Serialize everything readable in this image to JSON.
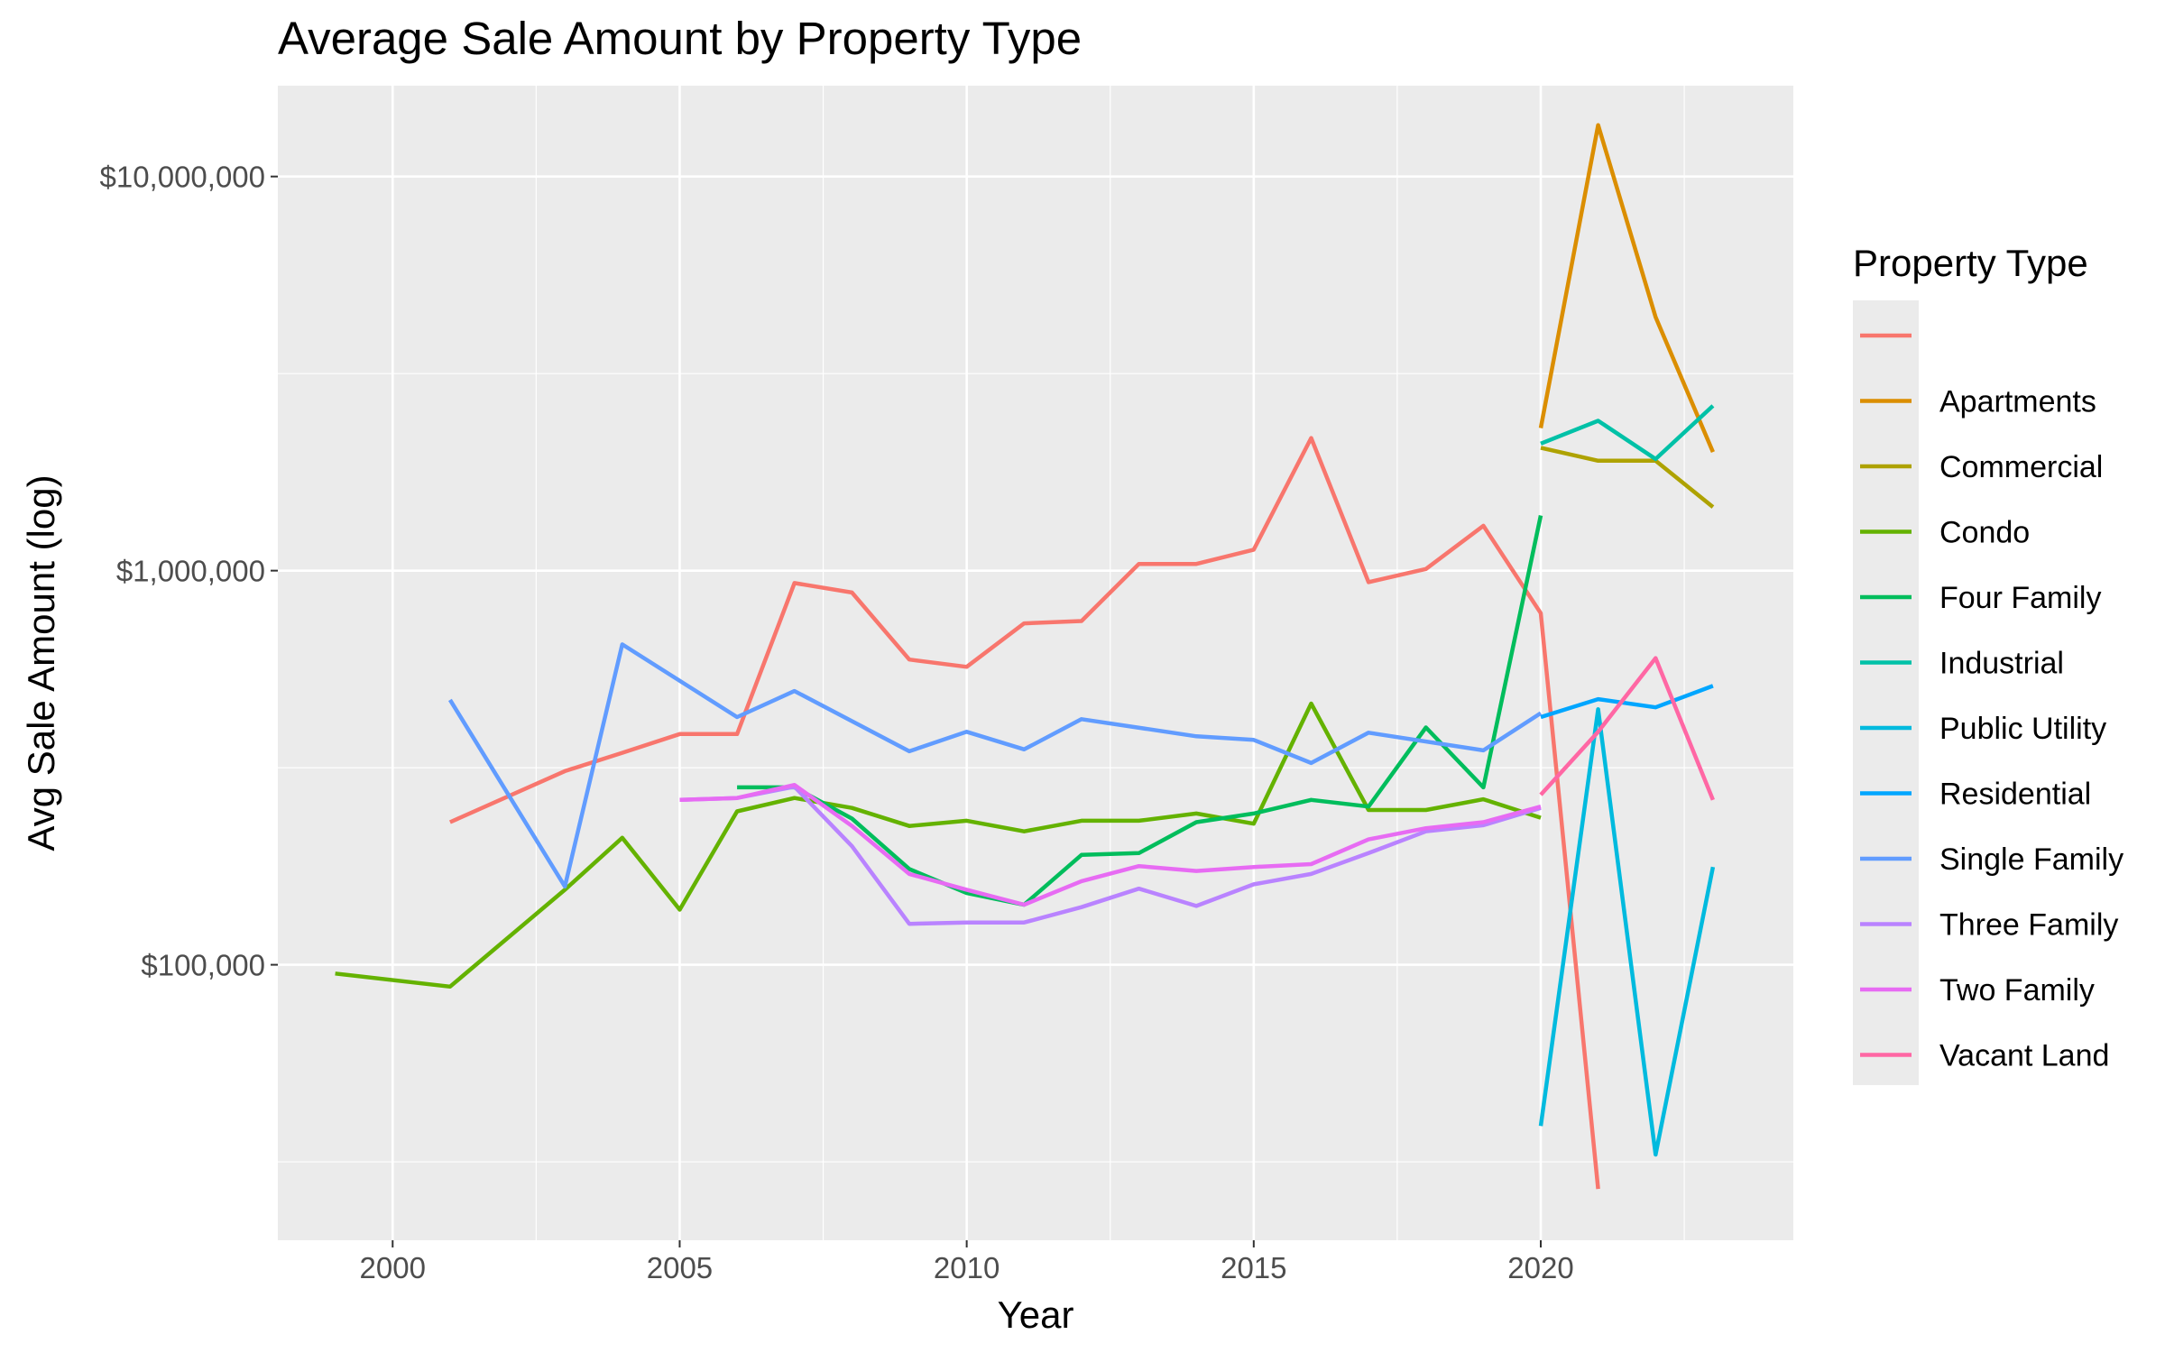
{
  "chart_data": {
    "type": "line",
    "title": "Average Sale Amount by Property Type",
    "xlabel": "Year",
    "ylabel": "Avg Sale Amount (log)",
    "y_scale": "log",
    "xlim": [
      1998,
      2024.4
    ],
    "ylim": [
      20000,
      17000000
    ],
    "x_ticks": [
      2000,
      2005,
      2010,
      2015,
      2020
    ],
    "x_tick_labels": [
      "2000",
      "2005",
      "2010",
      "2015",
      "2020"
    ],
    "y_ticks": [
      100000,
      1000000,
      10000000
    ],
    "y_tick_labels": [
      "$100,000",
      "$1,000,000",
      "$10,000,000"
    ],
    "grid": true,
    "legend_title": "Property Type",
    "legend_position": "right",
    "series": [
      {
        "name": "",
        "color": "#F8766D",
        "x": [
          2001,
          2003,
          2004,
          2005,
          2006,
          2007,
          2008,
          2009,
          2010,
          2011,
          2012,
          2013,
          2014,
          2015,
          2016,
          2017,
          2018,
          2019,
          2020,
          2021
        ],
        "y": [
          230000,
          310000,
          345000,
          385000,
          385000,
          930000,
          880000,
          595000,
          570000,
          735000,
          745000,
          1040000,
          1040000,
          1130000,
          2170000,
          935000,
          1010000,
          1300000,
          780000,
          27000
        ]
      },
      {
        "name": "Apartments",
        "color": "#DB8E00",
        "x": [
          2020,
          2021,
          2022,
          2023
        ],
        "y": [
          2300000,
          13500000,
          4400000,
          2000000
        ]
      },
      {
        "name": "Commercial",
        "color": "#AEA200",
        "x": [
          2020,
          2021,
          2022,
          2023
        ],
        "y": [
          2050000,
          1900000,
          1900000,
          1450000
        ]
      },
      {
        "name": "Condo",
        "color": "#64B200",
        "x": [
          1999,
          2001,
          2003,
          2004,
          2005,
          2006,
          2007,
          2008,
          2009,
          2010,
          2011,
          2012,
          2013,
          2014,
          2015,
          2016,
          2017,
          2018,
          2019,
          2020
        ],
        "y": [
          95000,
          88000,
          155000,
          210000,
          138000,
          245000,
          265000,
          250000,
          225000,
          232000,
          218000,
          232000,
          232000,
          242000,
          228000,
          460000,
          247000,
          247000,
          263000,
          236000
        ]
      },
      {
        "name": "Four Family",
        "color": "#00BD5C",
        "x": [
          2006,
          2007,
          2008,
          2009,
          2010,
          2011,
          2012,
          2013,
          2014,
          2015,
          2016,
          2017,
          2018,
          2019,
          2020
        ],
        "y": [
          282000,
          282000,
          235000,
          175000,
          152000,
          142000,
          190000,
          192000,
          230000,
          242000,
          262000,
          252000,
          400000,
          282000,
          1380000
        ]
      },
      {
        "name": "Industrial",
        "color": "#00C1A7",
        "x": [
          2020,
          2021,
          2022,
          2023
        ],
        "y": [
          2100000,
          2400000,
          1920000,
          2620000
        ]
      },
      {
        "name": "Public Utility",
        "color": "#00BADE",
        "x": [
          2020,
          2021,
          2022,
          2023
        ],
        "y": [
          39000,
          445000,
          33000,
          177000
        ]
      },
      {
        "name": "Residential",
        "color": "#00A6FF",
        "x": [
          2020,
          2021,
          2022,
          2023
        ],
        "y": [
          425000,
          472000,
          450000,
          510000
        ]
      },
      {
        "name": "Single Family",
        "color": "#619CFF",
        "x": [
          2001,
          2003,
          2004,
          2006,
          2007,
          2009,
          2010,
          2011,
          2012,
          2014,
          2015,
          2016,
          2017,
          2019,
          2020
        ],
        "y": [
          470000,
          158000,
          650000,
          425000,
          495000,
          348000,
          390000,
          352000,
          420000,
          380000,
          372000,
          325000,
          388000,
          350000,
          435000
        ]
      },
      {
        "name": "Three Family",
        "color": "#B983FF",
        "x": [
          2005,
          2006,
          2007,
          2008,
          2009,
          2010,
          2011,
          2012,
          2013,
          2014,
          2015,
          2016,
          2017,
          2018,
          2019,
          2020
        ],
        "y": [
          262000,
          265000,
          283000,
          200000,
          127000,
          128000,
          128000,
          140000,
          156000,
          141000,
          160000,
          170000,
          192000,
          218000,
          226000,
          250000
        ]
      },
      {
        "name": "Two Family",
        "color": "#E76BF3",
        "x": [
          2005,
          2006,
          2007,
          2008,
          2009,
          2010,
          2011,
          2012,
          2013,
          2014,
          2015,
          2016,
          2017,
          2018,
          2019,
          2020
        ],
        "y": [
          262000,
          265000,
          286000,
          225000,
          170000,
          155000,
          142000,
          163000,
          178000,
          173000,
          177000,
          180000,
          208000,
          222000,
          230000,
          252000
        ]
      },
      {
        "name": "Vacant Land",
        "color": "#FF67A4",
        "x": [
          2020,
          2021,
          2022,
          2023
        ],
        "y": [
          270000,
          390000,
          600000,
          262000
        ]
      }
    ]
  }
}
